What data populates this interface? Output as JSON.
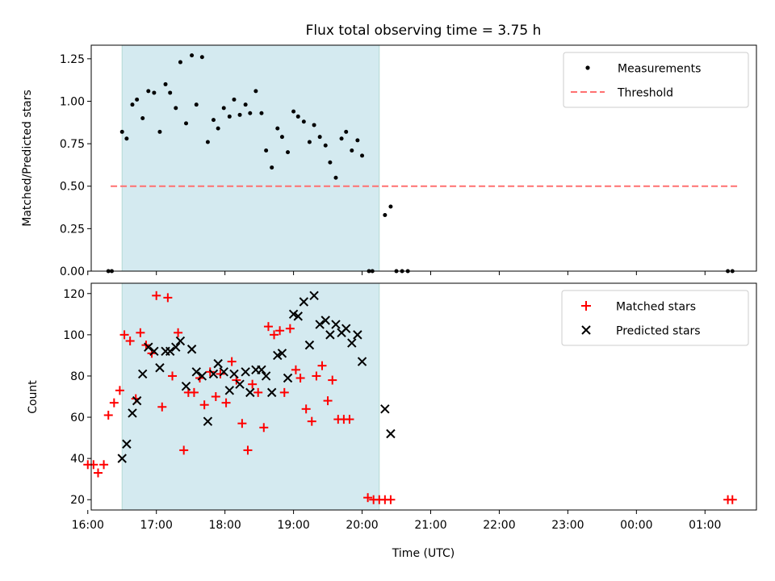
{
  "title": "Flux total observing time = 3.75 h",
  "colors": {
    "shade": "#d4eaf0",
    "shade_edge": "#b3dad5",
    "threshold": "#ff7070",
    "matched": "#ff0000",
    "predicted": "#000000",
    "measurement": "#000000"
  },
  "chart_data": [
    {
      "type": "scatter",
      "title": "Flux total observing time = 3.75 h",
      "xlabel": "",
      "ylabel": "Matched/Predicted stars",
      "xlim": [
        "16:03",
        "01:45"
      ],
      "ylim": [
        0,
        1.33
      ],
      "yticks": [
        "0.00",
        "0.25",
        "0.50",
        "0.75",
        "1.00",
        "1.25"
      ],
      "legend": "top-right",
      "shaded_span": [
        "16:30",
        "20:15"
      ],
      "series": [
        {
          "name": "Measurements",
          "marker": "dot",
          "points": [
            [
              "16:18",
              0.0
            ],
            [
              "16:21",
              0.0
            ],
            [
              "16:30",
              0.82
            ],
            [
              "16:34",
              0.78
            ],
            [
              "16:39",
              0.98
            ],
            [
              "16:43",
              1.01
            ],
            [
              "16:48",
              0.9
            ],
            [
              "16:53",
              1.06
            ],
            [
              "16:58",
              1.05
            ],
            [
              "17:03",
              0.82
            ],
            [
              "17:08",
              1.1
            ],
            [
              "17:12",
              1.05
            ],
            [
              "17:17",
              0.96
            ],
            [
              "17:21",
              1.23
            ],
            [
              "17:26",
              0.87
            ],
            [
              "17:31",
              1.27
            ],
            [
              "17:35",
              0.98
            ],
            [
              "17:40",
              1.26
            ],
            [
              "17:45",
              0.76
            ],
            [
              "17:50",
              0.89
            ],
            [
              "17:54",
              0.84
            ],
            [
              "17:59",
              0.96
            ],
            [
              "18:04",
              0.91
            ],
            [
              "18:08",
              1.01
            ],
            [
              "18:13",
              0.92
            ],
            [
              "18:18",
              0.98
            ],
            [
              "18:22",
              0.93
            ],
            [
              "18:27",
              1.06
            ],
            [
              "18:32",
              0.93
            ],
            [
              "18:36",
              0.71
            ],
            [
              "18:41",
              0.61
            ],
            [
              "18:46",
              0.84
            ],
            [
              "18:50",
              0.79
            ],
            [
              "18:55",
              0.7
            ],
            [
              "19:00",
              0.94
            ],
            [
              "19:04",
              0.91
            ],
            [
              "19:09",
              0.88
            ],
            [
              "19:14",
              0.76
            ],
            [
              "19:18",
              0.86
            ],
            [
              "19:23",
              0.79
            ],
            [
              "19:28",
              0.74
            ],
            [
              "19:32",
              0.64
            ],
            [
              "19:37",
              0.55
            ],
            [
              "19:42",
              0.78
            ],
            [
              "19:46",
              0.82
            ],
            [
              "19:51",
              0.71
            ],
            [
              "19:56",
              0.77
            ],
            [
              "20:00",
              0.68
            ],
            [
              "20:06",
              0.0
            ],
            [
              "20:09",
              0.0
            ],
            [
              "20:20",
              0.33
            ],
            [
              "20:25",
              0.38
            ],
            [
              "20:30",
              0.0
            ],
            [
              "20:35",
              0.0
            ],
            [
              "20:40",
              0.0
            ],
            [
              "01:20",
              0.0
            ],
            [
              "01:24",
              0.0
            ]
          ]
        },
        {
          "name": "Threshold",
          "style": "dashed-line",
          "points": [
            [
              "16:20",
              0.5
            ],
            [
              "01:29",
              0.5
            ]
          ]
        }
      ]
    },
    {
      "type": "scatter",
      "title": "",
      "xlabel": "Time (UTC)",
      "ylabel": "Count",
      "xlim": [
        "16:03",
        "01:45"
      ],
      "ylim": [
        15,
        125
      ],
      "yticks": [
        "20",
        "40",
        "60",
        "80",
        "100",
        "120"
      ],
      "xticks": [
        "16:00",
        "17:00",
        "18:00",
        "19:00",
        "20:00",
        "21:00",
        "22:00",
        "23:00",
        "00:00",
        "01:00"
      ],
      "legend": "top-right",
      "shaded_span": [
        "16:30",
        "20:15"
      ],
      "series": [
        {
          "name": "Matched stars",
          "marker": "plus",
          "points": [
            [
              "16:00",
              37
            ],
            [
              "16:05",
              37
            ],
            [
              "16:09",
              33
            ],
            [
              "16:14",
              37
            ],
            [
              "16:18",
              61
            ],
            [
              "16:23",
              67
            ],
            [
              "16:28",
              73
            ],
            [
              "16:32",
              100
            ],
            [
              "16:37",
              97
            ],
            [
              "16:42",
              69
            ],
            [
              "16:46",
              101
            ],
            [
              "16:51",
              95
            ],
            [
              "16:56",
              91
            ],
            [
              "17:00",
              119
            ],
            [
              "17:05",
              65
            ],
            [
              "17:10",
              118
            ],
            [
              "17:14",
              80
            ],
            [
              "17:19",
              101
            ],
            [
              "17:24",
              44
            ],
            [
              "17:28",
              72
            ],
            [
              "17:33",
              72
            ],
            [
              "17:38",
              79
            ],
            [
              "17:42",
              66
            ],
            [
              "17:47",
              82
            ],
            [
              "17:52",
              70
            ],
            [
              "17:56",
              81
            ],
            [
              "18:01",
              67
            ],
            [
              "18:06",
              87
            ],
            [
              "18:10",
              78
            ],
            [
              "18:15",
              57
            ],
            [
              "18:20",
              44
            ],
            [
              "18:24",
              76
            ],
            [
              "18:29",
              72
            ],
            [
              "18:34",
              55
            ],
            [
              "18:38",
              104
            ],
            [
              "18:43",
              100
            ],
            [
              "18:48",
              102
            ],
            [
              "18:52",
              72
            ],
            [
              "18:57",
              103
            ],
            [
              "19:02",
              83
            ],
            [
              "19:06",
              79
            ],
            [
              "19:11",
              64
            ],
            [
              "19:16",
              58
            ],
            [
              "19:20",
              80
            ],
            [
              "19:25",
              85
            ],
            [
              "19:30",
              68
            ],
            [
              "19:34",
              78
            ],
            [
              "19:39",
              59
            ],
            [
              "19:44",
              59
            ],
            [
              "19:49",
              59
            ],
            [
              "20:05",
              21
            ],
            [
              "20:10",
              20
            ],
            [
              "20:15",
              20
            ],
            [
              "20:20",
              20
            ],
            [
              "20:25",
              20
            ],
            [
              "01:20",
              20
            ],
            [
              "01:24",
              20
            ]
          ]
        },
        {
          "name": "Predicted stars",
          "marker": "x",
          "points": [
            [
              "16:30",
              40
            ],
            [
              "16:34",
              47
            ],
            [
              "16:39",
              62
            ],
            [
              "16:43",
              68
            ],
            [
              "16:48",
              81
            ],
            [
              "16:53",
              94
            ],
            [
              "16:58",
              92
            ],
            [
              "17:03",
              84
            ],
            [
              "17:08",
              92
            ],
            [
              "17:12",
              92
            ],
            [
              "17:17",
              94
            ],
            [
              "17:21",
              97
            ],
            [
              "17:26",
              75
            ],
            [
              "17:31",
              93
            ],
            [
              "17:35",
              82
            ],
            [
              "17:40",
              80
            ],
            [
              "17:45",
              58
            ],
            [
              "17:50",
              81
            ],
            [
              "17:54",
              86
            ],
            [
              "17:59",
              82
            ],
            [
              "18:04",
              73
            ],
            [
              "18:08",
              81
            ],
            [
              "18:13",
              76
            ],
            [
              "18:18",
              82
            ],
            [
              "18:22",
              72
            ],
            [
              "18:27",
              83
            ],
            [
              "18:32",
              83
            ],
            [
              "18:36",
              80
            ],
            [
              "18:41",
              72
            ],
            [
              "18:46",
              90
            ],
            [
              "18:50",
              91
            ],
            [
              "18:55",
              79
            ],
            [
              "19:00",
              110
            ],
            [
              "19:04",
              109
            ],
            [
              "19:09",
              116
            ],
            [
              "19:14",
              95
            ],
            [
              "19:18",
              119
            ],
            [
              "19:23",
              105
            ],
            [
              "19:28",
              107
            ],
            [
              "19:32",
              100
            ],
            [
              "19:37",
              105
            ],
            [
              "19:42",
              101
            ],
            [
              "19:46",
              103
            ],
            [
              "19:51",
              96
            ],
            [
              "19:56",
              100
            ],
            [
              "20:00",
              87
            ],
            [
              "20:20",
              64
            ],
            [
              "20:25",
              52
            ]
          ]
        }
      ]
    }
  ]
}
